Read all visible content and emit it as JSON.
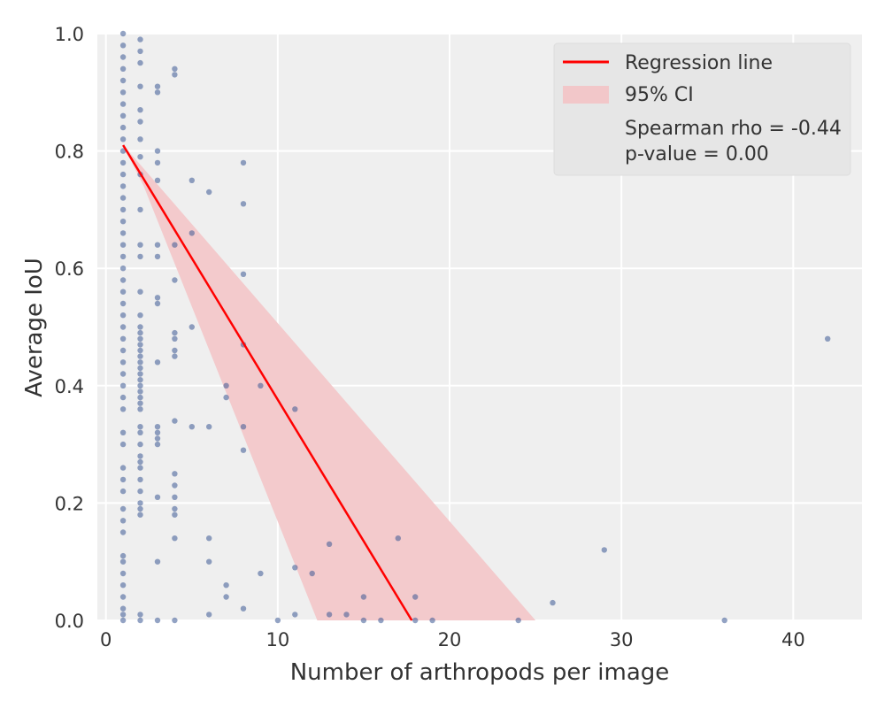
{
  "chart_data": {
    "type": "scatter",
    "title": "",
    "xlabel": "Number of arthropods per image",
    "ylabel": "Average IoU",
    "xlim": [
      -0.5,
      44
    ],
    "ylim": [
      0,
      1.0
    ],
    "x_ticks": [
      0,
      10,
      20,
      30,
      40
    ],
    "y_ticks": [
      0.0,
      0.2,
      0.4,
      0.6,
      0.8,
      1.0
    ],
    "x_tick_labels": [
      "0",
      "10",
      "20",
      "30",
      "40"
    ],
    "y_tick_labels": [
      "0.0",
      "0.2",
      "0.4",
      "0.6",
      "0.8",
      "1.0"
    ],
    "grid": true,
    "background_color": "#efefef",
    "points_color": "#3a5894",
    "regression_color": "#ff0000",
    "ci_color": "#f2c7c9",
    "points": [
      [
        1,
        1.0
      ],
      [
        1,
        0.98
      ],
      [
        1,
        0.96
      ],
      [
        1,
        0.94
      ],
      [
        1,
        0.92
      ],
      [
        1,
        0.9
      ],
      [
        1,
        0.88
      ],
      [
        1,
        0.86
      ],
      [
        1,
        0.84
      ],
      [
        1,
        0.82
      ],
      [
        1,
        0.8
      ],
      [
        1,
        0.78
      ],
      [
        1,
        0.76
      ],
      [
        1,
        0.74
      ],
      [
        1,
        0.72
      ],
      [
        1,
        0.7
      ],
      [
        1,
        0.68
      ],
      [
        1,
        0.66
      ],
      [
        1,
        0.64
      ],
      [
        1,
        0.62
      ],
      [
        1,
        0.6
      ],
      [
        1,
        0.58
      ],
      [
        1,
        0.56
      ],
      [
        1,
        0.54
      ],
      [
        1,
        0.52
      ],
      [
        1,
        0.5
      ],
      [
        1,
        0.48
      ],
      [
        1,
        0.46
      ],
      [
        1,
        0.44
      ],
      [
        1,
        0.42
      ],
      [
        1,
        0.4
      ],
      [
        1,
        0.38
      ],
      [
        1,
        0.36
      ],
      [
        1,
        0.32
      ],
      [
        1,
        0.3
      ],
      [
        1,
        0.26
      ],
      [
        1,
        0.24
      ],
      [
        1,
        0.22
      ],
      [
        1,
        0.19
      ],
      [
        1,
        0.17
      ],
      [
        1,
        0.15
      ],
      [
        1,
        0.11
      ],
      [
        1,
        0.1
      ],
      [
        1,
        0.08
      ],
      [
        1,
        0.06
      ],
      [
        1,
        0.04
      ],
      [
        1,
        0.02
      ],
      [
        1,
        0.01
      ],
      [
        1,
        0.0
      ],
      [
        2,
        0.99
      ],
      [
        2,
        0.97
      ],
      [
        2,
        0.95
      ],
      [
        2,
        0.91
      ],
      [
        2,
        0.87
      ],
      [
        2,
        0.85
      ],
      [
        2,
        0.82
      ],
      [
        2,
        0.79
      ],
      [
        2,
        0.76
      ],
      [
        2,
        0.7
      ],
      [
        2,
        0.64
      ],
      [
        2,
        0.62
      ],
      [
        2,
        0.56
      ],
      [
        2,
        0.52
      ],
      [
        2,
        0.5
      ],
      [
        2,
        0.49
      ],
      [
        2,
        0.48
      ],
      [
        2,
        0.47
      ],
      [
        2,
        0.46
      ],
      [
        2,
        0.45
      ],
      [
        2,
        0.44
      ],
      [
        2,
        0.43
      ],
      [
        2,
        0.42
      ],
      [
        2,
        0.41
      ],
      [
        2,
        0.4
      ],
      [
        2,
        0.39
      ],
      [
        2,
        0.38
      ],
      [
        2,
        0.37
      ],
      [
        2,
        0.36
      ],
      [
        2,
        0.33
      ],
      [
        2,
        0.32
      ],
      [
        2,
        0.3
      ],
      [
        2,
        0.28
      ],
      [
        2,
        0.27
      ],
      [
        2,
        0.26
      ],
      [
        2,
        0.24
      ],
      [
        2,
        0.22
      ],
      [
        2,
        0.2
      ],
      [
        2,
        0.19
      ],
      [
        2,
        0.18
      ],
      [
        2,
        0.01
      ],
      [
        2,
        0.0
      ],
      [
        3,
        0.91
      ],
      [
        3,
        0.9
      ],
      [
        3,
        0.8
      ],
      [
        3,
        0.78
      ],
      [
        3,
        0.75
      ],
      [
        3,
        0.64
      ],
      [
        3,
        0.62
      ],
      [
        3,
        0.55
      ],
      [
        3,
        0.54
      ],
      [
        3,
        0.44
      ],
      [
        3,
        0.33
      ],
      [
        3,
        0.32
      ],
      [
        3,
        0.31
      ],
      [
        3,
        0.3
      ],
      [
        3,
        0.21
      ],
      [
        3,
        0.1
      ],
      [
        3,
        0.0
      ],
      [
        4,
        0.94
      ],
      [
        4,
        0.93
      ],
      [
        4,
        0.64
      ],
      [
        4,
        0.58
      ],
      [
        4,
        0.49
      ],
      [
        4,
        0.48
      ],
      [
        4,
        0.46
      ],
      [
        4,
        0.45
      ],
      [
        4,
        0.34
      ],
      [
        4,
        0.25
      ],
      [
        4,
        0.23
      ],
      [
        4,
        0.21
      ],
      [
        4,
        0.19
      ],
      [
        4,
        0.18
      ],
      [
        4,
        0.14
      ],
      [
        4,
        0.0
      ],
      [
        5,
        0.75
      ],
      [
        5,
        0.66
      ],
      [
        5,
        0.5
      ],
      [
        5,
        0.33
      ],
      [
        6,
        0.73
      ],
      [
        6,
        0.33
      ],
      [
        6,
        0.14
      ],
      [
        6,
        0.1
      ],
      [
        6,
        0.01
      ],
      [
        7,
        0.4
      ],
      [
        7,
        0.38
      ],
      [
        7,
        0.06
      ],
      [
        7,
        0.04
      ],
      [
        8,
        0.78
      ],
      [
        8,
        0.71
      ],
      [
        8,
        0.59
      ],
      [
        8,
        0.47
      ],
      [
        8,
        0.33
      ],
      [
        8,
        0.29
      ],
      [
        8,
        0.02
      ],
      [
        9,
        0.4
      ],
      [
        9,
        0.08
      ],
      [
        10,
        0.0
      ],
      [
        11,
        0.36
      ],
      [
        11,
        0.09
      ],
      [
        11,
        0.01
      ],
      [
        12,
        0.08
      ],
      [
        13,
        0.13
      ],
      [
        13,
        0.01
      ],
      [
        14,
        0.01
      ],
      [
        15,
        0.04
      ],
      [
        15,
        0.0
      ],
      [
        16,
        0.0
      ],
      [
        17,
        0.14
      ],
      [
        18,
        0.04
      ],
      [
        18,
        0.0
      ],
      [
        19,
        0.0
      ],
      [
        24,
        0.0
      ],
      [
        26,
        0.03
      ],
      [
        29,
        0.12
      ],
      [
        36,
        0.0
      ],
      [
        42,
        0.48
      ]
    ],
    "regression_line": {
      "x": [
        1,
        17.8
      ],
      "y": [
        0.81,
        0.0
      ]
    },
    "ci_band": [
      [
        1,
        0.81
      ],
      [
        2.2,
        0.77
      ],
      [
        25,
        0.0
      ],
      [
        12.3,
        0.0
      ],
      [
        2.2,
        0.74
      ]
    ],
    "legend": {
      "placement": "top-right",
      "entries": [
        {
          "kind": "line",
          "label": "Regression line"
        },
        {
          "kind": "patch",
          "label": "95% CI"
        },
        {
          "kind": "text",
          "label": "Spearman rho = -0.44"
        },
        {
          "kind": "text",
          "label": "p-value = 0.00"
        }
      ]
    }
  }
}
